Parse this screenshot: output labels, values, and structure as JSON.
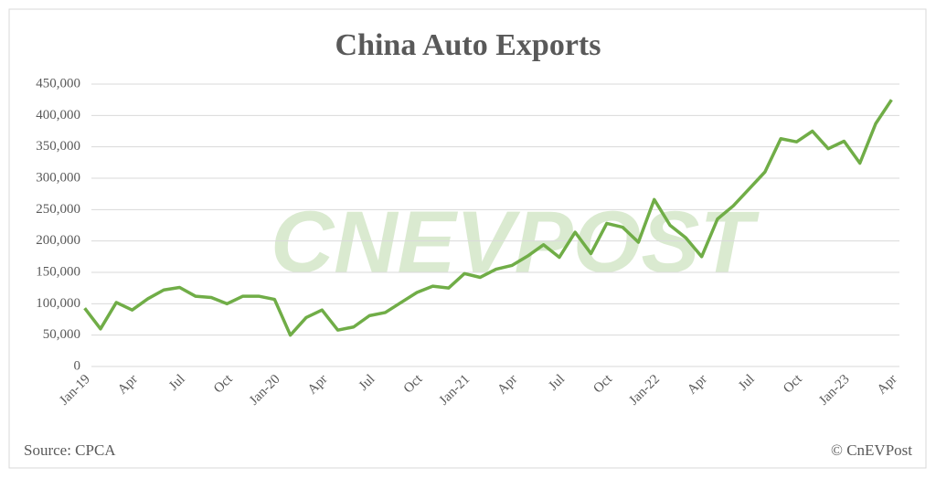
{
  "chart_data": {
    "type": "line",
    "title": "China Auto Exports",
    "source": "Source: CPCA",
    "credit": "© CnEVPost",
    "watermark": "CNEVPOST",
    "color": "#70ad47",
    "grid": true,
    "categories": [
      "Jan-19",
      null,
      null,
      "Apr",
      null,
      null,
      "Jul",
      null,
      null,
      "Oct",
      null,
      null,
      "Jan-20",
      null,
      null,
      "Apr",
      null,
      null,
      "Jul",
      null,
      null,
      "Oct",
      null,
      null,
      "Jan-21",
      null,
      null,
      "Apr",
      null,
      null,
      "Jul",
      null,
      null,
      "Oct",
      null,
      null,
      "Jan-22",
      null,
      null,
      "Apr",
      null,
      null,
      "Jul",
      null,
      null,
      "Oct",
      null,
      null,
      "Jan-23",
      null,
      null,
      "Apr"
    ],
    "values": [
      93000,
      60000,
      102000,
      90000,
      108000,
      122000,
      126000,
      112000,
      110000,
      100000,
      112000,
      112000,
      107000,
      50000,
      78000,
      90000,
      58000,
      63000,
      81000,
      86000,
      102000,
      118000,
      128000,
      125000,
      148000,
      142000,
      155000,
      161000,
      176000,
      194000,
      174000,
      214000,
      180000,
      228000,
      222000,
      198000,
      266000,
      225000,
      205000,
      175000,
      235000,
      256000,
      283000,
      310000,
      363000,
      358000,
      375000,
      347000,
      359000,
      324000,
      387000,
      425000
    ],
    "ylim": [
      0,
      450000
    ],
    "yticks": [
      0,
      {
        "value": 50000,
        "label": "50,000"
      },
      {
        "value": 100000,
        "label": "100,000"
      },
      {
        "value": 150000,
        "label": "150,000"
      },
      {
        "value": 200000,
        "label": "200,000"
      },
      {
        "value": 250000,
        "label": "250,000"
      },
      {
        "value": 300000,
        "label": "300,000"
      },
      {
        "value": 350000,
        "label": "350,000"
      },
      {
        "value": 400000,
        "label": "400,000"
      },
      {
        "value": 450000,
        "label": "450,000"
      }
    ]
  }
}
